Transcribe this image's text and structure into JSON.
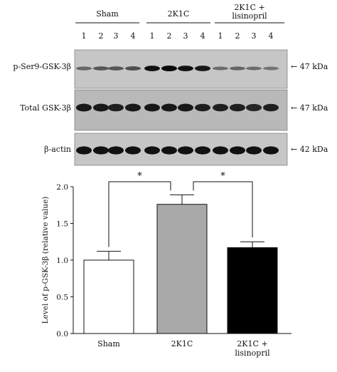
{
  "blot": {
    "groups": [
      {
        "label_lines": [
          "Sham"
        ],
        "lanes": [
          "1",
          "2",
          "3",
          "4"
        ]
      },
      {
        "label_lines": [
          "2K1C"
        ],
        "lanes": [
          "1",
          "2",
          "3",
          "4"
        ]
      },
      {
        "label_lines": [
          "2K1C +",
          "lisinopril"
        ],
        "lanes": [
          "1",
          "2",
          "3",
          "4"
        ]
      }
    ],
    "rows": [
      {
        "label": "p-Ser9-GSK-3β",
        "marker": "← 47 kDa",
        "band_intensity": [
          0.35,
          0.45,
          0.45,
          0.5,
          0.95,
          1.0,
          0.95,
          0.9,
          0.3,
          0.35,
          0.3,
          0.25
        ]
      },
      {
        "label": "Total GSK-3β",
        "marker": "← 47 kDa",
        "band_intensity": [
          0.9,
          0.9,
          0.85,
          0.9,
          0.9,
          0.9,
          0.9,
          0.85,
          0.85,
          0.85,
          0.8,
          0.85
        ]
      },
      {
        "label": "β-actin",
        "marker": "← 42 kDa",
        "band_intensity": [
          0.95,
          0.95,
          0.95,
          0.95,
          0.95,
          0.95,
          0.95,
          0.95,
          0.95,
          0.95,
          0.95,
          0.95
        ]
      }
    ]
  },
  "chart_data": {
    "type": "bar",
    "categories": [
      [
        "Sham"
      ],
      [
        "2K1C"
      ],
      [
        "2K1C +",
        "lisinopril"
      ]
    ],
    "values": [
      1.0,
      1.76,
      1.17
    ],
    "errors": [
      0.12,
      0.13,
      0.08
    ],
    "colors": [
      "#ffffff",
      "#a9a9a9",
      "#000000"
    ],
    "ylabel": "Level of p-GSK-3β (relative value)",
    "ylim": [
      0,
      2.0
    ],
    "yticks": [
      "0.0",
      "0.5",
      "1.0",
      "1.5",
      "2.0"
    ],
    "significance": [
      {
        "from": 0,
        "to": 1,
        "label": "*"
      },
      {
        "from": 1,
        "to": 2,
        "label": "*"
      }
    ]
  }
}
